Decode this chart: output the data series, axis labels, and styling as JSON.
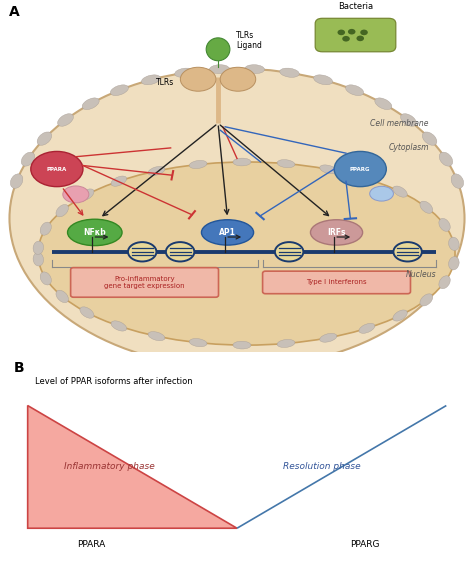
{
  "bg_color": "#ffffff",
  "cell_fill": "#f0dfc0",
  "cell_edge": "#c8a878",
  "nucleus_fill": "#e8d0a0",
  "nucleus_edge": "#c8a060",
  "dot_fill": "#c8c0b8",
  "dot_edge": "#aaa098",
  "tlr_fill": "#ddb888",
  "tlr_edge": "#b89060",
  "ligand_fill": "#66aa44",
  "ligand_edge": "#448833",
  "bacteria_fill": "#99bb55",
  "bacteria_edge": "#778833",
  "ppara_fill": "#cc4455",
  "ppara_edge": "#aa2233",
  "pparg_fill": "#5588bb",
  "pparg_edge": "#336699",
  "ppara_rxr_fill": "#e8a0b0",
  "pparg_rxr_fill": "#aac8e8",
  "nfkb_fill": "#55aa44",
  "nfkb_edge": "#338822",
  "ap1_fill": "#4477bb",
  "ap1_edge": "#225599",
  "irfs_fill": "#cc9999",
  "irfs_edge": "#aa7777",
  "dna_color": "#1a3a6e",
  "nuc_fill": "#e8d8a0",
  "nuc_stripe": "#1a3a6e",
  "arrow_dark": "#222222",
  "arrow_red": "#cc3333",
  "arrow_blue": "#3366bb",
  "box_fill": "#f0b8a8",
  "box_edge": "#cc6655",
  "label_color": "#333333",
  "tri_red_fill": "#f5a8a0",
  "tri_red_edge": "#cc4444",
  "tri_blue_fill": "#a8c8e8",
  "tri_blue_edge": "#4477aa",
  "label_A": "A",
  "label_B": "B",
  "bacteria_label": "Bacteria",
  "tlrs_ligand_label": "TLRs\nLigand",
  "tlrs_label": "TLRs",
  "cell_membrane_label": "Cell membrane",
  "cytoplasm_label": "Cytoplasm",
  "nucleus_label": "Nucleus",
  "nfkb_label": "NFκb",
  "ap1_label": "AP1",
  "irfs_label": "IRFs",
  "pro_inflam_label": "Pro-inflammatory\ngene target expression",
  "type1_ifn_label": "Type I interferons",
  "panel_b_title": "Level of PPAR isoforms after infection",
  "inflam_phase_label": "Inflammatory phase",
  "resol_phase_label": "Resolution phase",
  "ppara_bottom_label": "PPARA",
  "pparg_bottom_label": "PPARG"
}
